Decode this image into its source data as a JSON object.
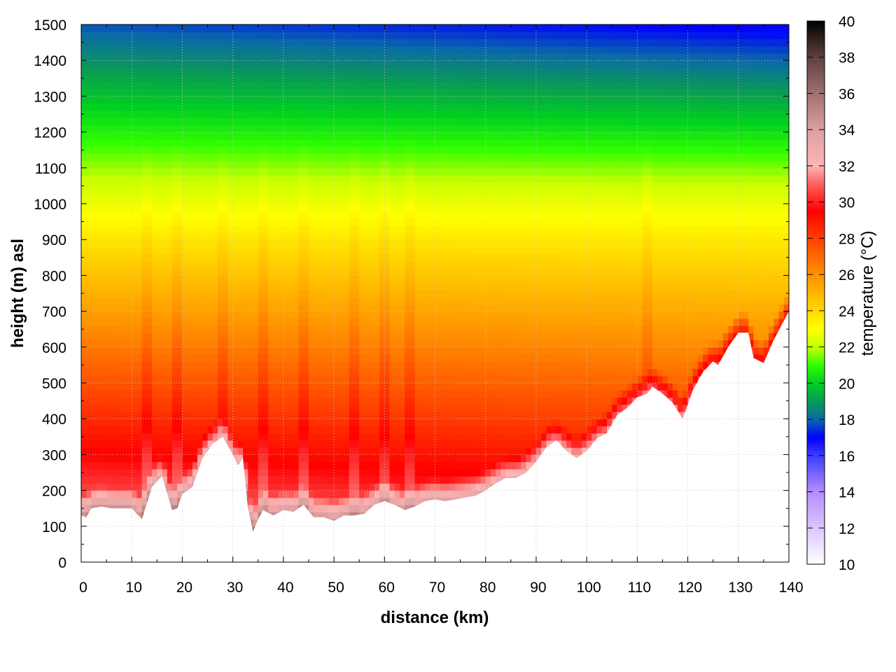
{
  "chart_data": {
    "type": "heatmap",
    "title": "",
    "xlabel": "distance (km)",
    "ylabel": "height (m) asl",
    "xlim": [
      0,
      140
    ],
    "ylim": [
      0,
      1500
    ],
    "x_ticks": [
      "0",
      "10",
      "20",
      "30",
      "40",
      "50",
      "60",
      "70",
      "80",
      "90",
      "100",
      "110",
      "120",
      "130",
      "140"
    ],
    "y_ticks": [
      "0",
      "100",
      "200",
      "300",
      "400",
      "500",
      "600",
      "700",
      "800",
      "900",
      "1000",
      "1100",
      "1200",
      "1300",
      "1400",
      "1500"
    ],
    "grid": true,
    "colorbar": {
      "label": "temperature (°C)",
      "range": [
        10,
        40
      ],
      "ticks": [
        "10",
        "12",
        "14",
        "16",
        "18",
        "20",
        "22",
        "24",
        "26",
        "28",
        "30",
        "32",
        "34",
        "36",
        "38",
        "40"
      ],
      "colors": [
        {
          "value": 10,
          "color": "#ffffff"
        },
        {
          "value": 14,
          "color": "#b58cff"
        },
        {
          "value": 16,
          "color": "#3c3cff"
        },
        {
          "value": 17,
          "color": "#0000ff"
        },
        {
          "value": 18,
          "color": "#0a6aa8"
        },
        {
          "value": 19,
          "color": "#0a9a55"
        },
        {
          "value": 20,
          "color": "#00d020"
        },
        {
          "value": 21,
          "color": "#30ff00"
        },
        {
          "value": 22,
          "color": "#c8ff00"
        },
        {
          "value": 23,
          "color": "#ffff00"
        },
        {
          "value": 24,
          "color": "#ffd800"
        },
        {
          "value": 26,
          "color": "#ff9000"
        },
        {
          "value": 28,
          "color": "#ff4000"
        },
        {
          "value": 29.5,
          "color": "#ff0000"
        },
        {
          "value": 31,
          "color": "#ff6060"
        },
        {
          "value": 32,
          "color": "#ffb4b4"
        },
        {
          "value": 34,
          "color": "#dca0a0"
        },
        {
          "value": 36,
          "color": "#a07070"
        },
        {
          "value": 38,
          "color": "#604040"
        },
        {
          "value": 40,
          "color": "#000000"
        }
      ]
    },
    "terrain": {
      "x": [
        0,
        1,
        2,
        4,
        6,
        8,
        10,
        12,
        14,
        16,
        18,
        19,
        20,
        22,
        24,
        26,
        28,
        30,
        31,
        32,
        33,
        34,
        35,
        36,
        38,
        40,
        42,
        44,
        46,
        48,
        50,
        52,
        54,
        56,
        58,
        60,
        62,
        64,
        66,
        68,
        70,
        72,
        74,
        76,
        78,
        80,
        82,
        84,
        86,
        88,
        90,
        92,
        94,
        96,
        98,
        100,
        102,
        104,
        106,
        108,
        110,
        112,
        113,
        115,
        117,
        119,
        121,
        123,
        125,
        126,
        128,
        130,
        132,
        133,
        135,
        137,
        140
      ],
      "y": [
        130,
        125,
        150,
        155,
        150,
        150,
        150,
        120,
        210,
        240,
        145,
        150,
        190,
        210,
        290,
        330,
        350,
        300,
        270,
        290,
        150,
        85,
        120,
        145,
        130,
        145,
        140,
        160,
        125,
        125,
        115,
        130,
        130,
        135,
        160,
        170,
        160,
        145,
        155,
        170,
        175,
        170,
        175,
        180,
        185,
        200,
        220,
        235,
        235,
        250,
        280,
        320,
        340,
        310,
        290,
        310,
        345,
        360,
        410,
        430,
        460,
        470,
        490,
        470,
        445,
        400,
        480,
        530,
        560,
        550,
        600,
        640,
        640,
        570,
        555,
        620,
        700
      ]
    },
    "field": {
      "dryline_levels_m": [
        1440,
        1480
      ],
      "warm_columns_km": [
        13,
        19,
        28,
        36,
        44,
        54,
        60,
        65,
        112
      ],
      "note_colder_aloft": true
    }
  }
}
